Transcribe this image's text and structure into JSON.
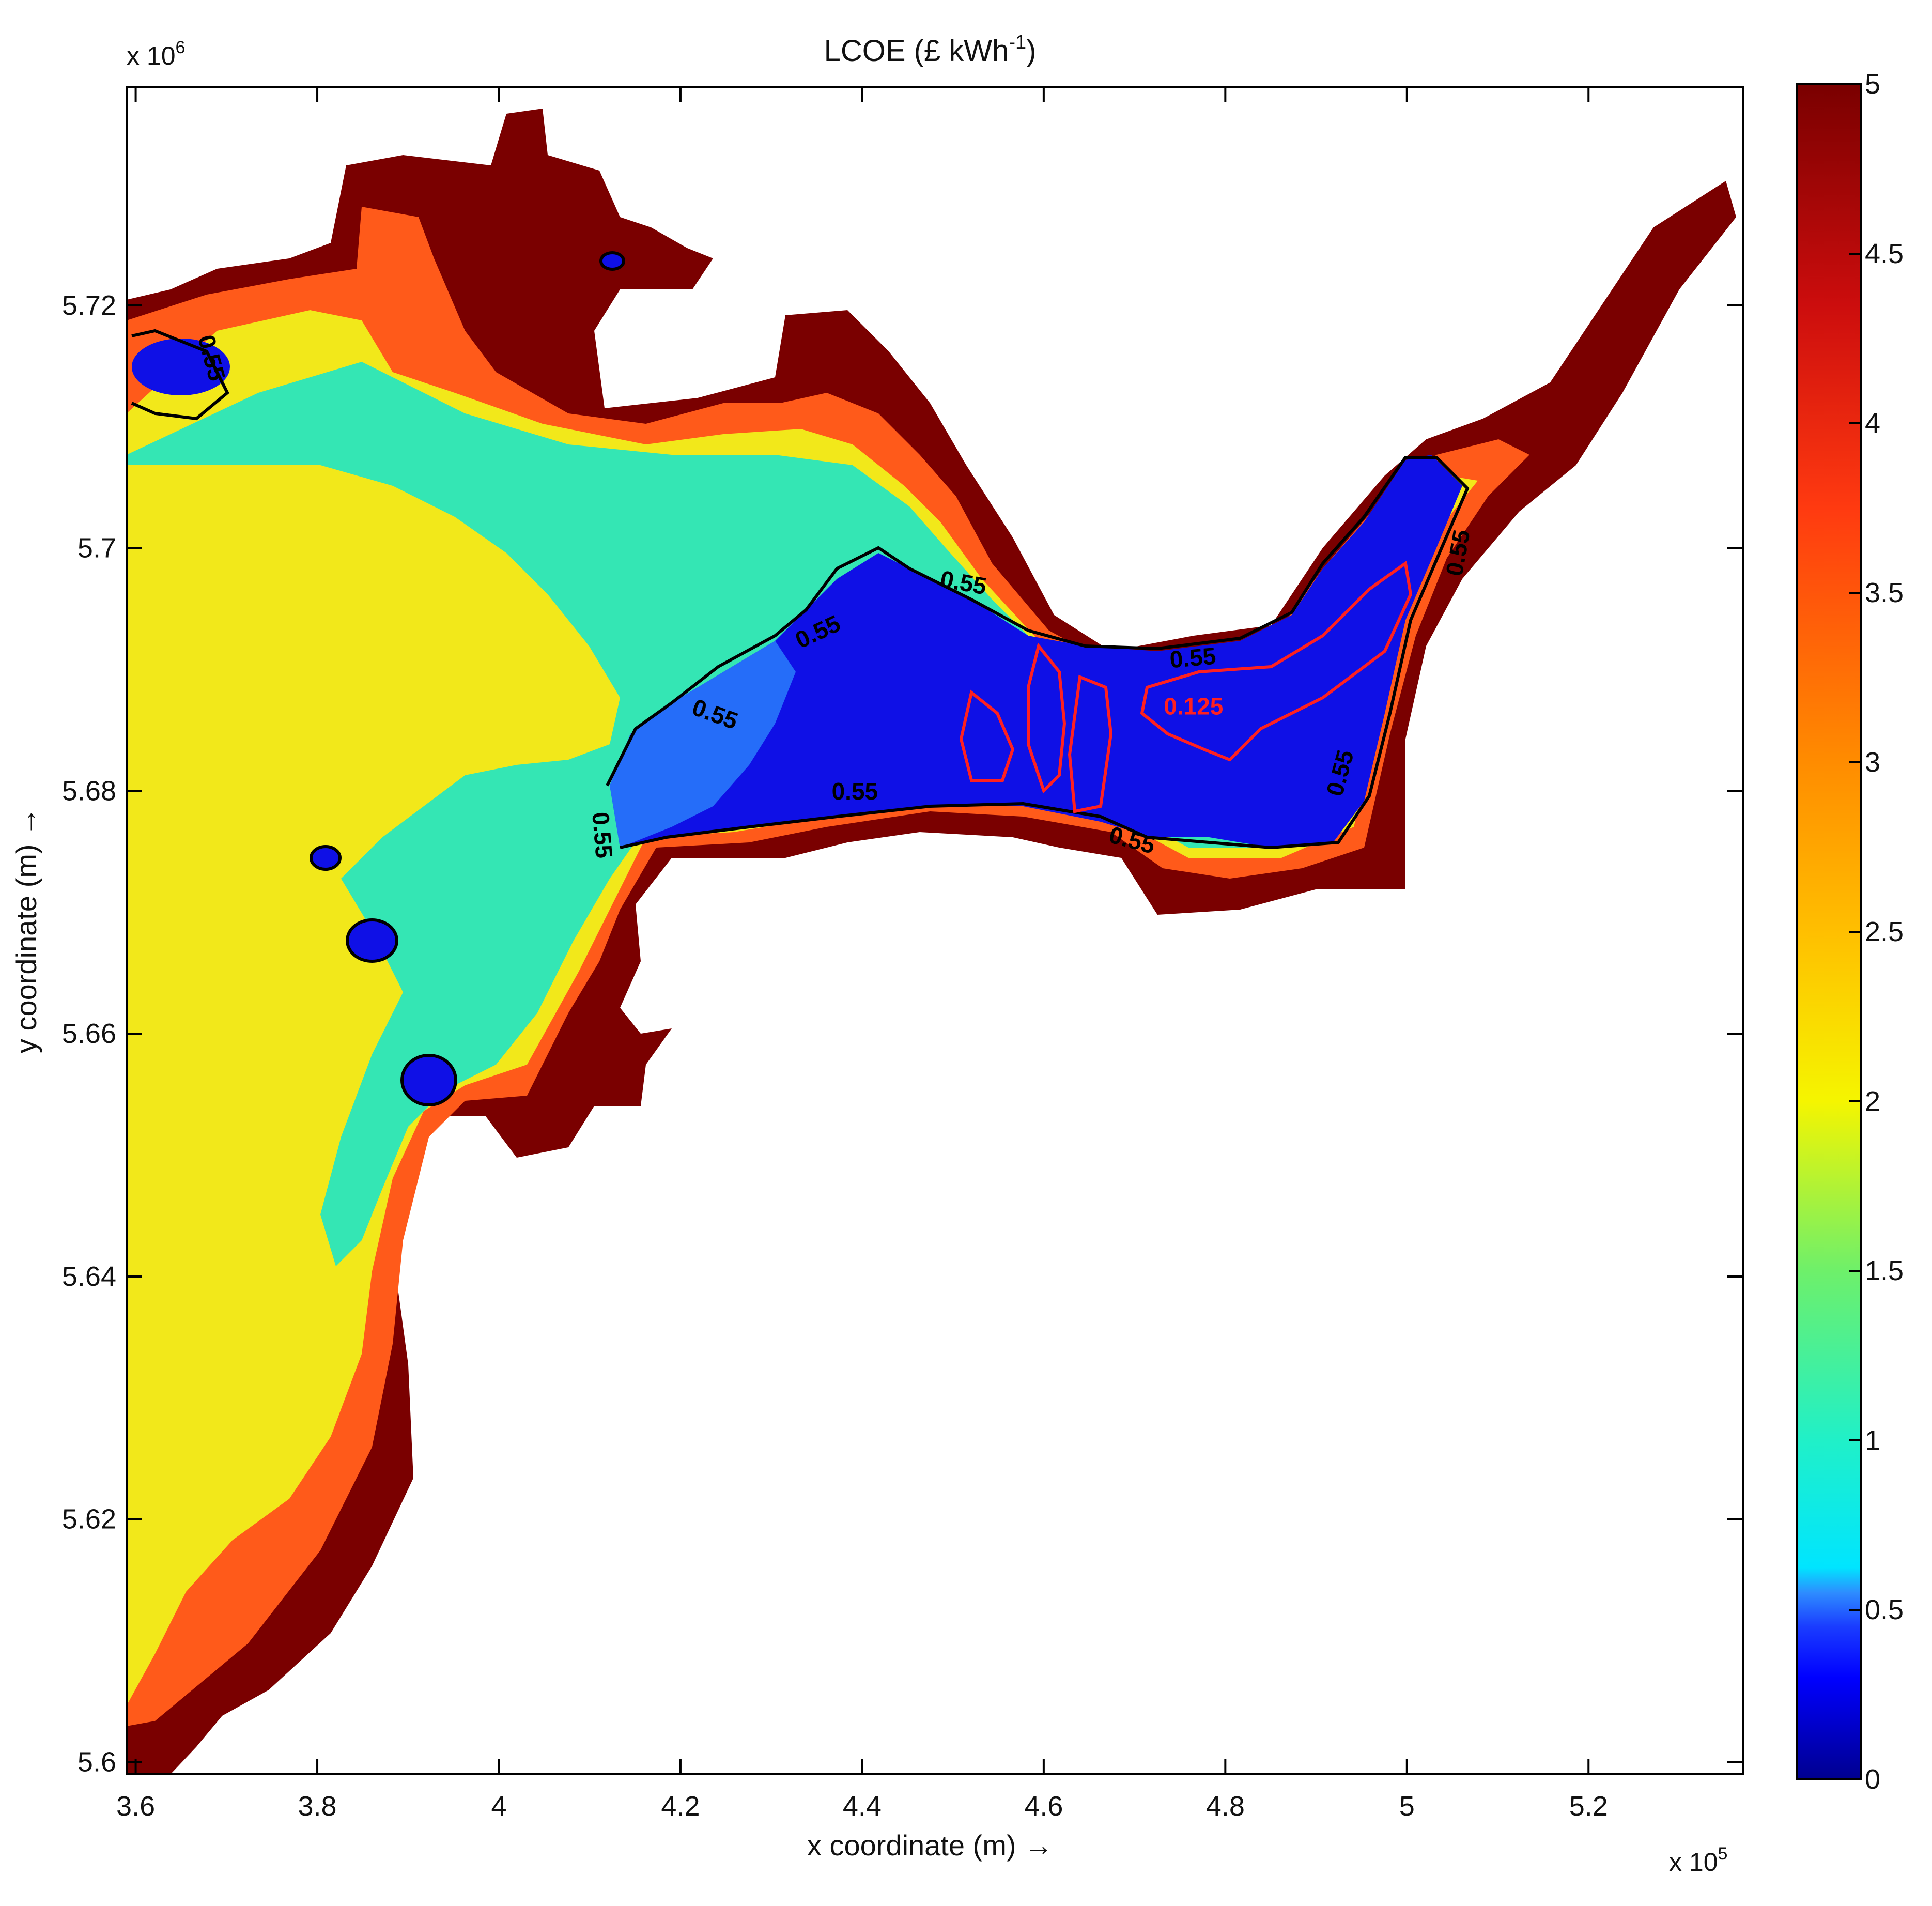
{
  "chart_data": {
    "type": "heatmap",
    "title": "LCOE (£ kWh",
    "title_sup": "-1",
    "title_close": ")",
    "xlabel": "x coordinate (m) →",
    "ylabel": "y coordinate (m) →",
    "x_multiplier_text": "x 10",
    "x_multiplier_exp": "5",
    "y_multiplier_text": "x 10",
    "y_multiplier_exp": "6",
    "xlim": [
      3.59,
      5.37
    ],
    "ylim": [
      5.599,
      5.738
    ],
    "x_ticks": [
      3.6,
      3.8,
      4.0,
      4.2,
      4.4,
      4.6,
      4.8,
      5.0,
      5.2
    ],
    "x_tick_labels": [
      "3.6",
      "3.8",
      "4",
      "4.2",
      "4.4",
      "4.6",
      "4.8",
      "5",
      "5.2"
    ],
    "y_ticks": [
      5.6,
      5.62,
      5.64,
      5.66,
      5.68,
      5.7,
      5.72
    ],
    "y_tick_labels": [
      "5.6",
      "5.62",
      "5.64",
      "5.66",
      "5.68",
      "5.7",
      "5.72"
    ],
    "colorbar": {
      "range": [
        0,
        5
      ],
      "ticks": [
        0,
        0.5,
        1,
        1.5,
        2,
        2.5,
        3,
        3.5,
        4,
        4.5,
        5
      ],
      "tick_labels": [
        "0",
        "0.5",
        "1",
        "1.5",
        "2",
        "2.5",
        "3",
        "3.5",
        "4",
        "4.5",
        "5"
      ],
      "colormap": "jet"
    },
    "contours": [
      {
        "level": "0.55",
        "color": "#000000"
      },
      {
        "level": "0.125",
        "color": "#ff2020"
      }
    ],
    "contour_labels": [
      {
        "text": "0.55",
        "x": 3.675,
        "y": 5.7155,
        "rotate": 75,
        "color": "#000000"
      },
      {
        "text": "0.55",
        "x": 4.51,
        "y": 5.6965,
        "rotate": 10,
        "color": "#000000"
      },
      {
        "text": "0.55",
        "x": 4.355,
        "y": 5.6925,
        "rotate": -25,
        "color": "#000000"
      },
      {
        "text": "0.55",
        "x": 4.235,
        "y": 5.6857,
        "rotate": 20,
        "color": "#000000"
      },
      {
        "text": "0.55",
        "x": 4.105,
        "y": 5.6763,
        "rotate": 85,
        "color": "#000000"
      },
      {
        "text": "0.55",
        "x": 4.392,
        "y": 5.6793,
        "rotate": 0,
        "color": "#000000"
      },
      {
        "text": "0.55",
        "x": 4.765,
        "y": 5.6903,
        "rotate": -5,
        "color": "#000000"
      },
      {
        "text": "0.55",
        "x": 4.695,
        "y": 5.6753,
        "rotate": 15,
        "color": "#000000"
      },
      {
        "text": "0.55",
        "x": 5.065,
        "y": 5.6995,
        "rotate": -80,
        "color": "#000000"
      },
      {
        "text": "0.55",
        "x": 4.935,
        "y": 5.6813,
        "rotate": -75,
        "color": "#000000"
      },
      {
        "text": "0.125",
        "x": 4.765,
        "y": 5.6863,
        "rotate": 0,
        "color": "#ff2020"
      }
    ],
    "legend": "colorbar-right",
    "grid": false
  }
}
